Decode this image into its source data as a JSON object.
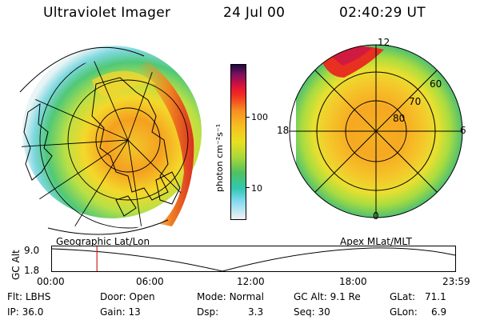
{
  "header": {
    "title": "Ultraviolet Imager",
    "date": "24 Jul 00",
    "time": "02:40:29 UT"
  },
  "colorbar": {
    "label": "photon cm⁻²s⁻¹",
    "ticks": [
      "100",
      "10"
    ]
  },
  "geo_panel": {
    "label": "Geographic Lat/Lon"
  },
  "polar_panel": {
    "label": "Apex MLat/MLT",
    "mlt_labels": {
      "top": "12",
      "left": "18",
      "right": "6",
      "bottom": "0"
    },
    "lat_labels": [
      "60",
      "70",
      "80"
    ]
  },
  "timeline": {
    "axis_title": "GC Alt",
    "y_top": "9.0",
    "y_bottom": "1.8",
    "x_ticks": [
      "00:00",
      "06:00",
      "12:00",
      "18:00",
      "23:59"
    ],
    "cursor_time_hours": 2.675
  },
  "info": {
    "filter_label": "Flt:",
    "filter_value": "LBHS",
    "ip_label": "IP:",
    "ip_value": "36.0",
    "door_label": "Door:",
    "door_value": "Open",
    "gain_label": "Gain:",
    "gain_value": "13",
    "mode_label": "Mode:",
    "mode_value": "Normal",
    "dsp_label": "Dsp:",
    "dsp_value": "3.3",
    "gcalt_label": "GC Alt:",
    "gcalt_value": "9.1 Re",
    "seq_label": "Seq:",
    "seq_value": "30",
    "glat_label": "GLat:",
    "glat_value": "71.1",
    "glon_label": "GLon:",
    "glon_value": "6.9"
  },
  "colors": {
    "cursor": "#d42020",
    "background": "#ffffff"
  }
}
